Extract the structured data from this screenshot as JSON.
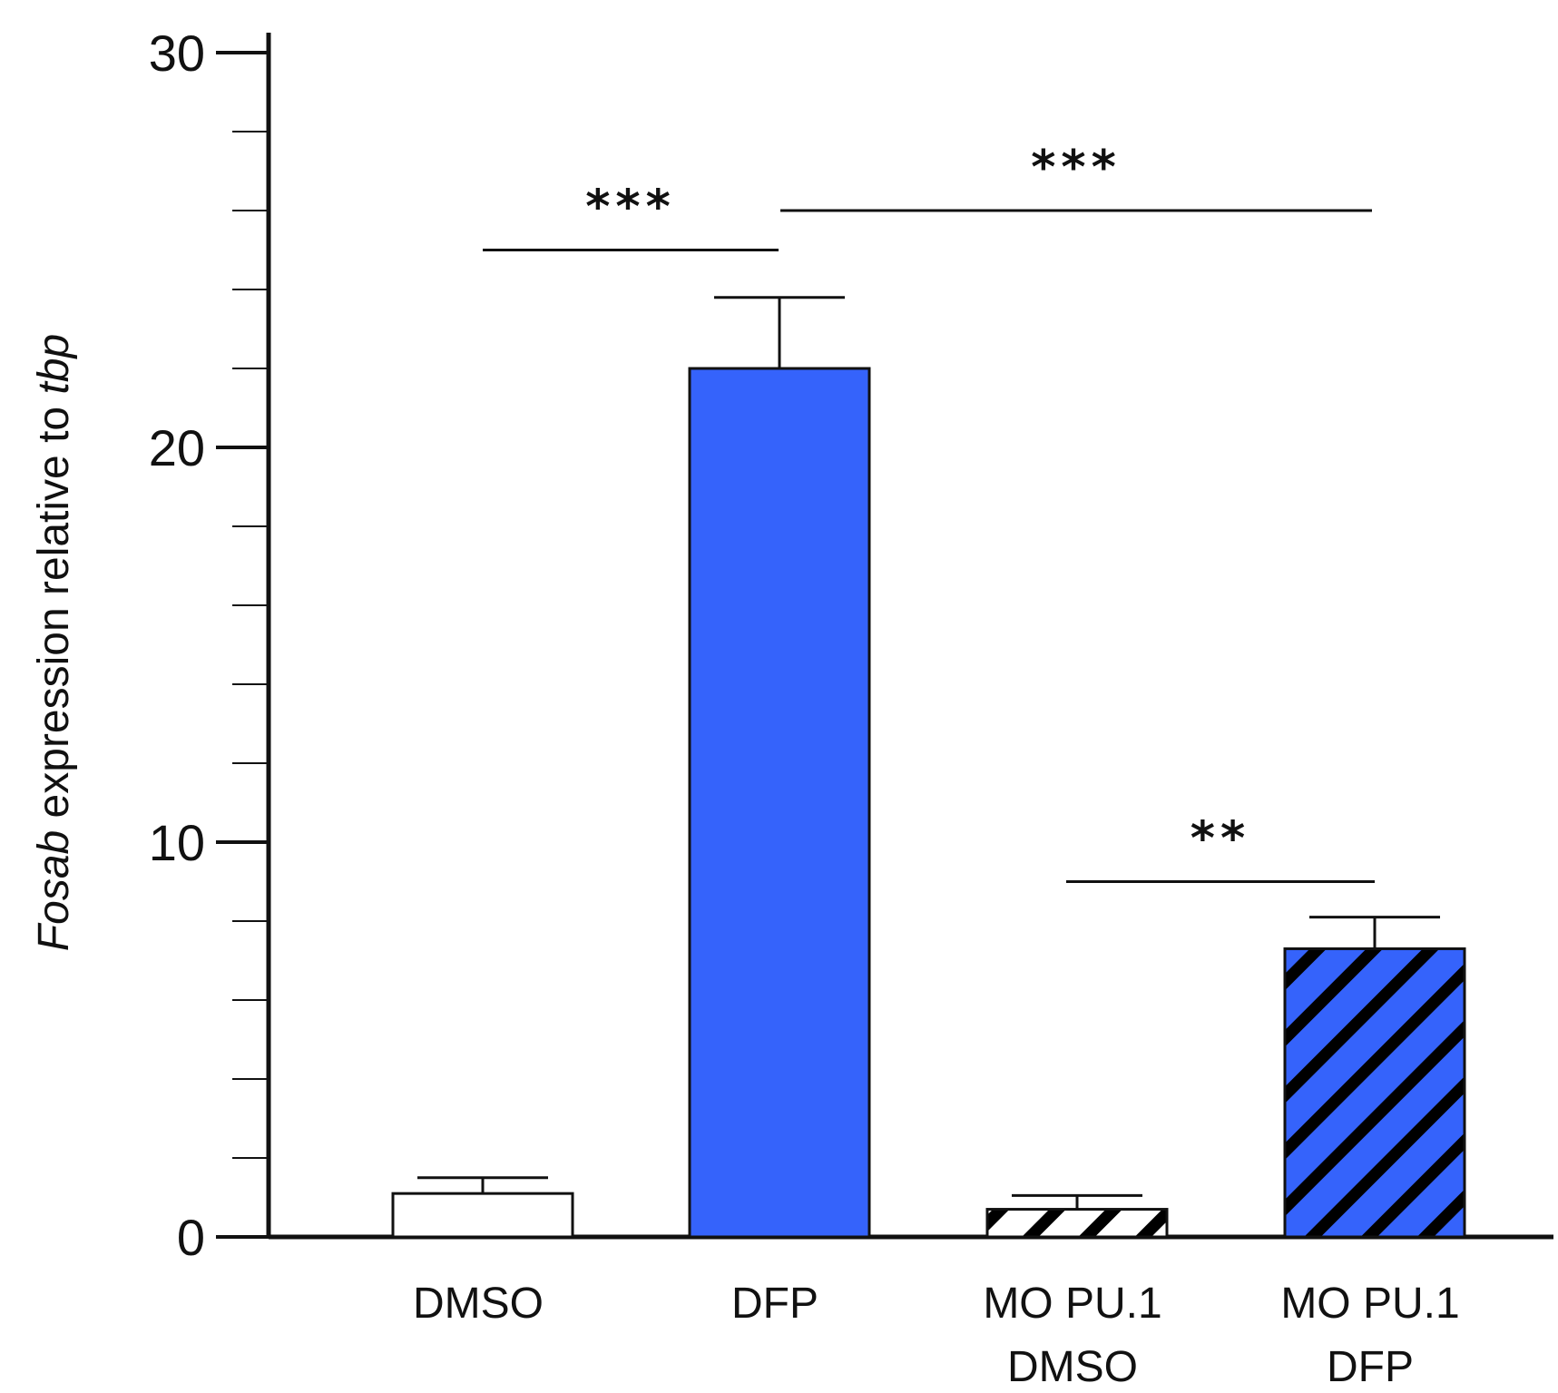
{
  "chart_data": {
    "type": "bar",
    "title": "",
    "xlabel": "",
    "ylabel": {
      "gene": "Fosab",
      "middle": " expression relative to ",
      "reference": "tbp"
    },
    "ylim": [
      0,
      30
    ],
    "yticks": [
      "0",
      "10",
      "20",
      "30"
    ],
    "minor_tick_step": 2,
    "categories": [
      [
        "DMSO"
      ],
      [
        "DFP"
      ],
      [
        "MO PU.1",
        "DMSO"
      ],
      [
        "MO PU.1",
        "DFP"
      ]
    ],
    "values": [
      1.1,
      22.0,
      0.7,
      7.3
    ],
    "errors": [
      0.4,
      1.8,
      0.35,
      0.8
    ],
    "styles": [
      {
        "fill": "#ffffff",
        "hatched": false
      },
      {
        "fill": "#3563fb",
        "hatched": false
      },
      {
        "fill": "#ffffff",
        "hatched": true
      },
      {
        "fill": "#3563fb",
        "hatched": true
      }
    ],
    "significance": [
      {
        "from": 0,
        "to": 1,
        "level": 25.0,
        "label": "***"
      },
      {
        "from": 1,
        "to": 3,
        "level": 26.0,
        "label": "***"
      },
      {
        "from": 2,
        "to": 3,
        "level": 9.0,
        "label": "**"
      }
    ],
    "colors": {
      "axis": "#111111",
      "hatch": "#000000",
      "blue": "#3563fb"
    }
  }
}
